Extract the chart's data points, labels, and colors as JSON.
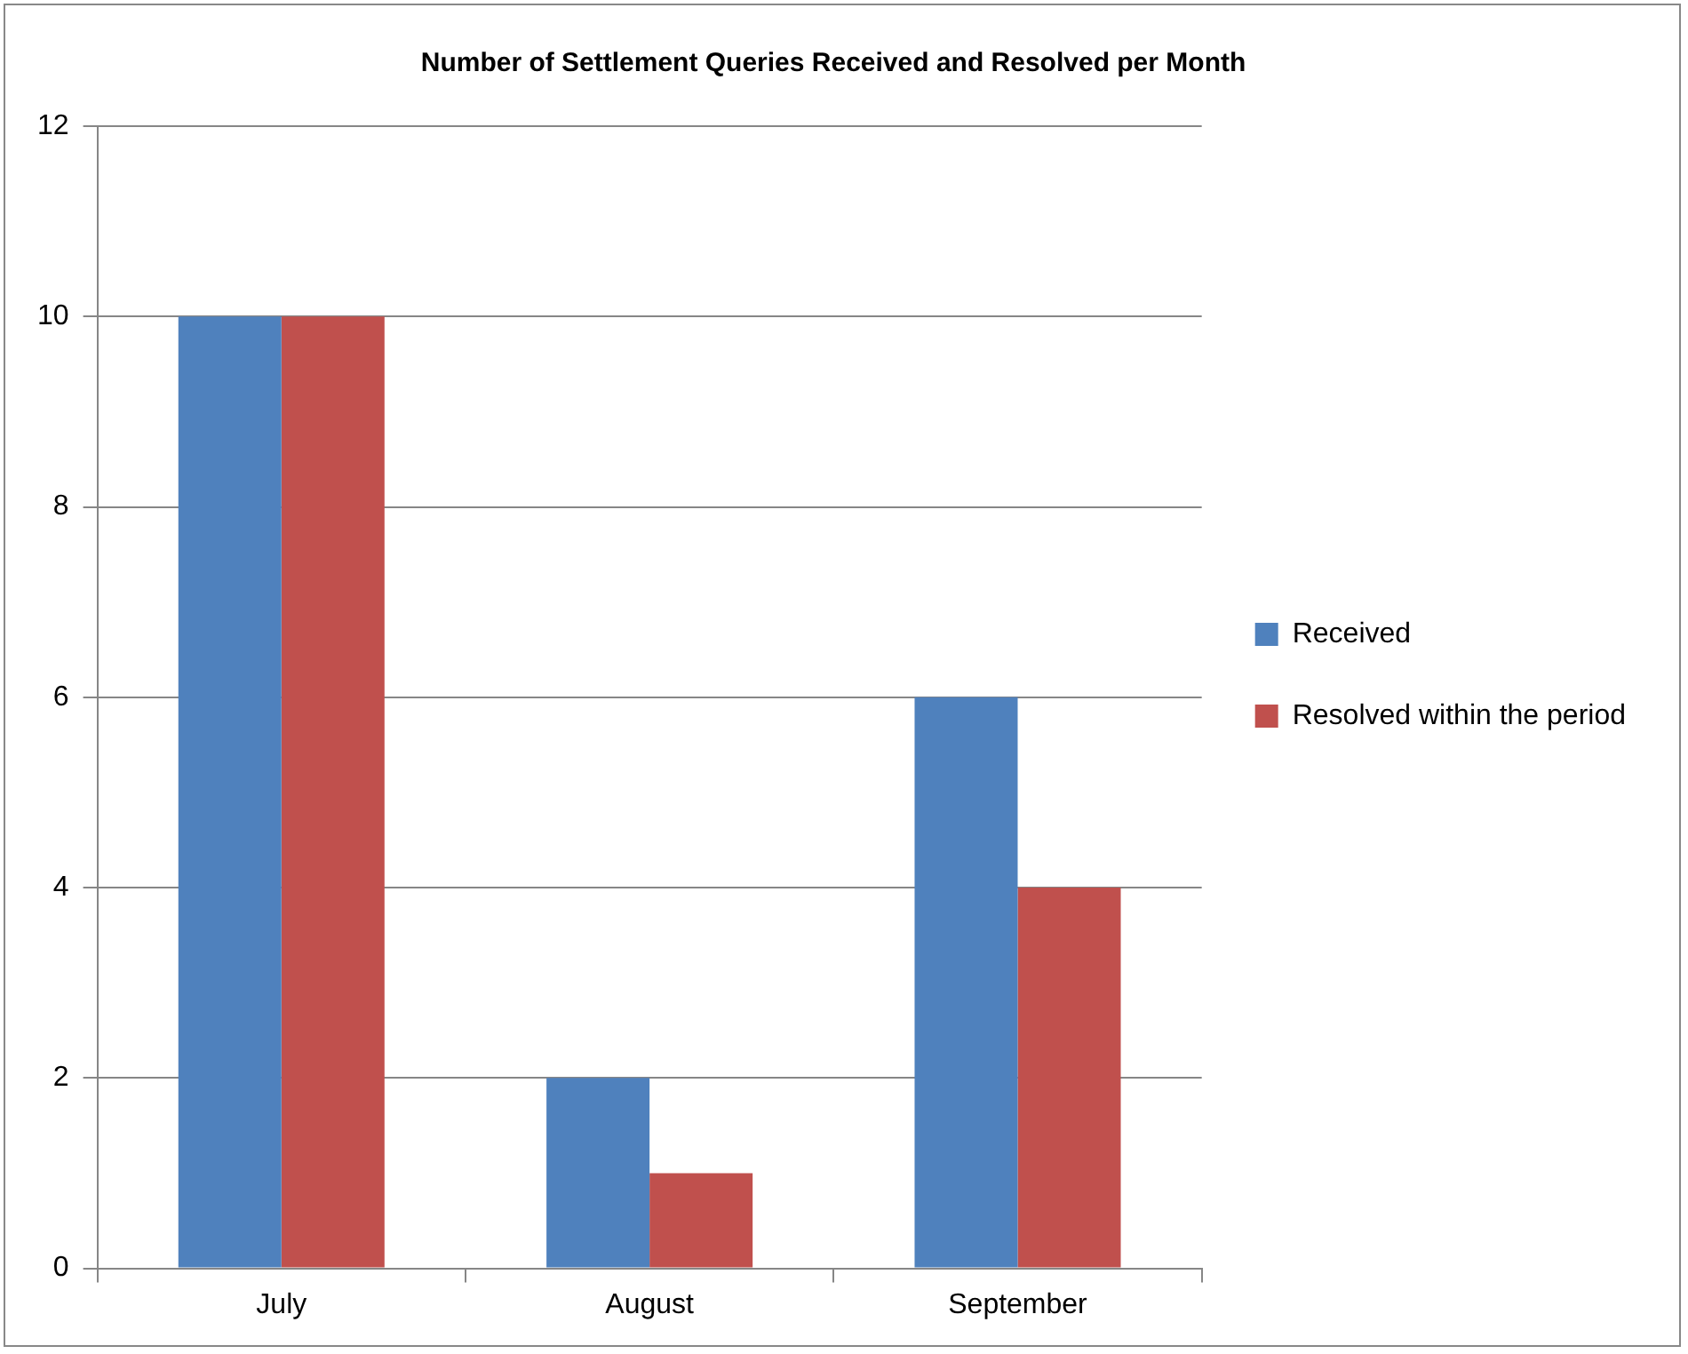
{
  "chart_data": {
    "type": "bar",
    "title": "Number of Settlement Queries Received and Resolved per Month",
    "categories": [
      "July",
      "August",
      "September"
    ],
    "series": [
      {
        "name": "Received",
        "color": "#4f81bd",
        "values": [
          10,
          2,
          6
        ]
      },
      {
        "name": "Resolved within the period",
        "color": "#c0504d",
        "values": [
          10,
          1,
          4
        ]
      }
    ],
    "ylim": [
      0,
      12
    ],
    "yticks": [
      0,
      2,
      4,
      6,
      8,
      10,
      12
    ],
    "grid": "y",
    "legend": "right"
  }
}
